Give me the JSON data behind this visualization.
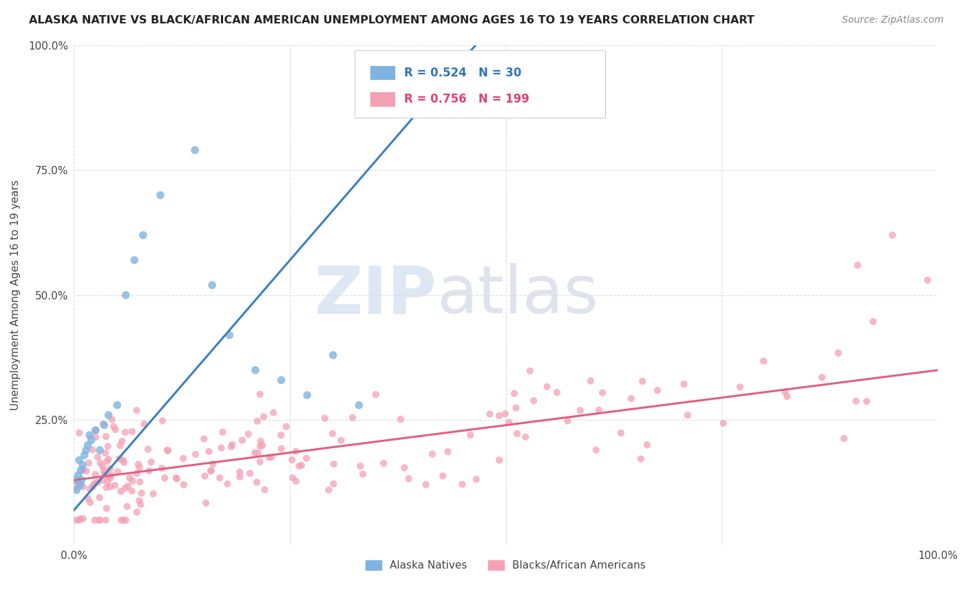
{
  "title": "ALASKA NATIVE VS BLACK/AFRICAN AMERICAN UNEMPLOYMENT AMONG AGES 16 TO 19 YEARS CORRELATION CHART",
  "source": "Source: ZipAtlas.com",
  "ylabel": "Unemployment Among Ages 16 to 19 years",
  "xlim": [
    0,
    1
  ],
  "ylim": [
    0,
    1
  ],
  "blue_R": 0.524,
  "blue_N": 30,
  "pink_R": 0.756,
  "pink_N": 199,
  "blue_color": "#7FB3E0",
  "pink_color": "#F4A0B5",
  "blue_line_color": "#3A7FC1",
  "pink_line_color": "#E06080",
  "watermark_zip": "ZIP",
  "watermark_atlas": "atlas",
  "watermark_color_zip": "#C8D8EE",
  "watermark_color_atlas": "#C0C8D8",
  "legend1_label": "Alaska Natives",
  "legend2_label": "Blacks/African Americans",
  "background": "#FFFFFF",
  "grid_color": "#DDDDDD",
  "blue_x": [
    0.002,
    0.003,
    0.005,
    0.006,
    0.007,
    0.008,
    0.009,
    0.01,
    0.012,
    0.014,
    0.016,
    0.018,
    0.02,
    0.025,
    0.03,
    0.035,
    0.04,
    0.05,
    0.06,
    0.07,
    0.08,
    0.1,
    0.14,
    0.16,
    0.18,
    0.21,
    0.24,
    0.27,
    0.3,
    0.33
  ],
  "blue_y": [
    0.13,
    0.11,
    0.14,
    0.17,
    0.12,
    0.15,
    0.13,
    0.16,
    0.18,
    0.19,
    0.2,
    0.22,
    0.21,
    0.23,
    0.19,
    0.24,
    0.26,
    0.28,
    0.5,
    0.57,
    0.62,
    0.7,
    0.79,
    0.52,
    0.42,
    0.35,
    0.33,
    0.3,
    0.38,
    0.28
  ],
  "blue_trend_x": [
    0.0,
    0.55
  ],
  "blue_trend_slope": 2.0,
  "blue_trend_intercept": 0.07,
  "pink_trend_slope": 0.22,
  "pink_trend_intercept": 0.13
}
